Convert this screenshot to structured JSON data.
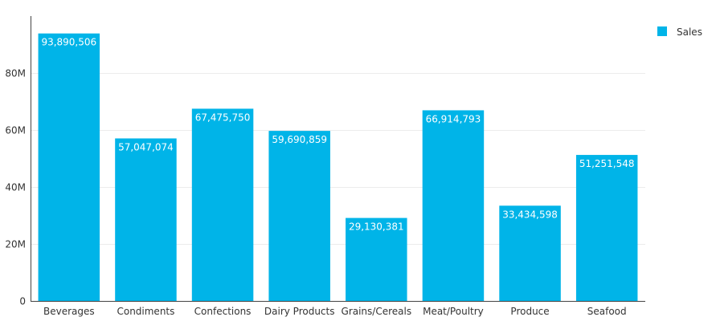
{
  "chart_data": {
    "type": "bar",
    "categories": [
      "Beverages",
      "Condiments",
      "Confections",
      "Dairy Products",
      "Grains/Cereals",
      "Meat/Poultry",
      "Produce",
      "Seafood"
    ],
    "series": [
      {
        "name": "Sales",
        "values": [
          93890506,
          57047074,
          67475750,
          59690859,
          29130381,
          66914793,
          33434598,
          51251548
        ],
        "labels": [
          "93,890,506",
          "57,047,074",
          "67,475,750",
          "59,690,859",
          "29,130,381",
          "66,914,793",
          "33,434,598",
          "51,251,548"
        ]
      }
    ],
    "y_ticks": [
      {
        "value": 0,
        "label": "0"
      },
      {
        "value": 20000000,
        "label": "20M"
      },
      {
        "value": 40000000,
        "label": "40M"
      },
      {
        "value": 60000000,
        "label": "60M"
      },
      {
        "value": 80000000,
        "label": "80M"
      }
    ],
    "ylim": [
      0,
      100000000
    ],
    "grid": true,
    "legend_position": "top-right",
    "colors": {
      "bar": "#00b4e8"
    }
  }
}
